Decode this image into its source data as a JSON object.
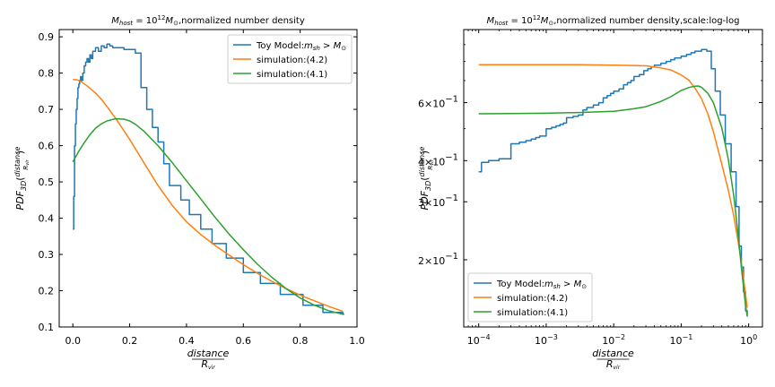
{
  "chart_data": [
    {
      "type": "line",
      "title": "M_host = 10^12 M_⊙ ,normalized number density",
      "title_parts": {
        "m": "M",
        "host": "host",
        "eq": " = 10",
        "exp": "12",
        "msun": "M",
        "sun": "⊙",
        "rest": ",normalized number density"
      },
      "xlabel": "distance / R_vir",
      "xlabel_parts": {
        "num": "distance",
        "den": "R",
        "den_sub": "vir"
      },
      "ylabel": "PDF_3D(distance / R_vir)",
      "ylabel_parts": {
        "pdf": "PDF",
        "sub": "3D",
        "open": "(",
        "num": "distance",
        "den": "R",
        "den_sub": "vir",
        "close": ")"
      },
      "xscale": "linear",
      "yscale": "linear",
      "xlim": [
        -0.048,
        1.0
      ],
      "ylim": [
        0.1,
        0.92
      ],
      "xticks": [
        0.0,
        0.2,
        0.4,
        0.6,
        0.8,
        1.0
      ],
      "xtick_labels": [
        "0.0",
        "0.2",
        "0.4",
        "0.6",
        "0.8",
        "1.0"
      ],
      "yticks": [
        0.1,
        0.2,
        0.3,
        0.4,
        0.5,
        0.6,
        0.7,
        0.8,
        0.9
      ],
      "ytick_labels": [
        "0.1",
        "0.2",
        "0.3",
        "0.4",
        "0.5",
        "0.6",
        "0.7",
        "0.8",
        "0.9"
      ],
      "legend_position": "top-right",
      "grid": false,
      "series": [
        {
          "name": "Toy Model:m_sh > M_⊙",
          "name_parts": {
            "base": "Toy Model:",
            "m": "m",
            "sub": "sh",
            "op": " > ",
            "M": "M",
            "sun": "⊙"
          },
          "color": "#1f77b4",
          "kind": "step",
          "x": [
            0.0,
            0.003,
            0.006,
            0.009,
            0.012,
            0.015,
            0.018,
            0.021,
            0.024,
            0.027,
            0.03,
            0.035,
            0.04,
            0.045,
            0.05,
            0.055,
            0.06,
            0.065,
            0.07,
            0.08,
            0.09,
            0.1,
            0.11,
            0.12,
            0.13,
            0.14,
            0.16,
            0.18,
            0.22,
            0.24,
            0.26,
            0.28,
            0.3,
            0.32,
            0.34,
            0.38,
            0.41,
            0.45,
            0.49,
            0.54,
            0.6,
            0.66,
            0.73,
            0.81,
            0.88,
            0.95
          ],
          "y": [
            0.37,
            0.46,
            0.6,
            0.66,
            0.7,
            0.73,
            0.76,
            0.77,
            0.78,
            0.79,
            0.78,
            0.8,
            0.82,
            0.83,
            0.84,
            0.83,
            0.85,
            0.84,
            0.86,
            0.87,
            0.86,
            0.875,
            0.87,
            0.88,
            0.875,
            0.87,
            0.87,
            0.865,
            0.855,
            0.76,
            0.7,
            0.65,
            0.61,
            0.55,
            0.49,
            0.45,
            0.41,
            0.37,
            0.33,
            0.29,
            0.25,
            0.22,
            0.19,
            0.16,
            0.14,
            0.135
          ]
        },
        {
          "name": "simulation:(4.2)",
          "color": "#ff7f0e",
          "kind": "line",
          "x": [
            0.0,
            0.01,
            0.02,
            0.03,
            0.05,
            0.08,
            0.1,
            0.12,
            0.15,
            0.18,
            0.2,
            0.25,
            0.3,
            0.35,
            0.4,
            0.45,
            0.5,
            0.55,
            0.6,
            0.65,
            0.7,
            0.75,
            0.8,
            0.85,
            0.9,
            0.95
          ],
          "y": [
            0.782,
            0.782,
            0.78,
            0.776,
            0.765,
            0.745,
            0.728,
            0.708,
            0.676,
            0.641,
            0.617,
            0.553,
            0.49,
            0.435,
            0.39,
            0.355,
            0.325,
            0.298,
            0.272,
            0.248,
            0.226,
            0.206,
            0.188,
            0.172,
            0.157,
            0.143
          ]
        },
        {
          "name": "simulation:(4.1)",
          "color": "#2ca02c",
          "kind": "line",
          "x": [
            0.0,
            0.02,
            0.04,
            0.06,
            0.08,
            0.1,
            0.12,
            0.15,
            0.18,
            0.2,
            0.22,
            0.25,
            0.3,
            0.35,
            0.4,
            0.45,
            0.5,
            0.55,
            0.6,
            0.65,
            0.7,
            0.75,
            0.8,
            0.85,
            0.9,
            0.95
          ],
          "y": [
            0.555,
            0.583,
            0.608,
            0.63,
            0.648,
            0.66,
            0.668,
            0.674,
            0.673,
            0.668,
            0.659,
            0.64,
            0.6,
            0.553,
            0.503,
            0.453,
            0.403,
            0.356,
            0.313,
            0.273,
            0.237,
            0.206,
            0.18,
            0.16,
            0.145,
            0.135
          ]
        }
      ]
    },
    {
      "type": "line",
      "title": "M_host = 10^12 M_⊙ ,normalized number density,scale:log-log",
      "title_parts": {
        "m": "M",
        "host": "host",
        "eq": " = 10",
        "exp": "12",
        "msun": "M",
        "sun": "⊙",
        "rest": ",normalized number density,scale:log-log"
      },
      "xlabel": "distance / R_vir",
      "xlabel_parts": {
        "num": "distance",
        "den": "R",
        "den_sub": "vir"
      },
      "ylabel": "PDF_3D(distance / R_vir)",
      "ylabel_parts": {
        "pdf": "PDF",
        "sub": "3D",
        "open": "(",
        "num": "distance",
        "den": "R",
        "den_sub": "vir",
        "close": ")"
      },
      "xscale": "log",
      "yscale": "log",
      "xlim": [
        6e-05,
        1.6
      ],
      "ylim": [
        0.125,
        1.0
      ],
      "xticks": [
        0.0001,
        0.001,
        0.01,
        0.1,
        1.0
      ],
      "xtick_labels": [
        {
          "base": "10",
          "exp": "−4"
        },
        {
          "base": "10",
          "exp": "−3"
        },
        {
          "base": "10",
          "exp": "−2"
        },
        {
          "base": "10",
          "exp": "−1"
        },
        {
          "base": "10",
          "exp": "0"
        }
      ],
      "yticks": [
        0.2,
        0.3,
        0.4,
        0.6
      ],
      "ytick_labels": [
        {
          "m": "2",
          "x": "×",
          "base": "10",
          "exp": "−1"
        },
        {
          "m": "3",
          "x": "×",
          "base": "10",
          "exp": "−1"
        },
        {
          "m": "4",
          "x": "×",
          "base": "10",
          "exp": "−1"
        },
        {
          "m": "6",
          "x": "×",
          "base": "10",
          "exp": "−1"
        }
      ],
      "legend_position": "bottom-left",
      "grid": false,
      "series": [
        {
          "name": "Toy Model:m_sh > M_⊙",
          "name_parts": {
            "base": "Toy Model:",
            "m": "m",
            "sub": "sh",
            "op": " > ",
            "M": "M",
            "sun": "⊙"
          },
          "color": "#1f77b4",
          "kind": "step",
          "x": [
            0.0001,
            0.00011,
            0.00014,
            0.0002,
            0.0003,
            0.0004,
            0.0005,
            0.0006,
            0.0007,
            0.0008,
            0.001,
            0.0012,
            0.0014,
            0.0016,
            0.0018,
            0.002,
            0.0025,
            0.003,
            0.0035,
            0.004,
            0.005,
            0.006,
            0.007,
            0.008,
            0.009,
            0.01,
            0.012,
            0.014,
            0.016,
            0.018,
            0.02,
            0.024,
            0.028,
            0.032,
            0.036,
            0.04,
            0.05,
            0.06,
            0.07,
            0.08,
            0.1,
            0.12,
            0.14,
            0.16,
            0.2,
            0.24,
            0.28,
            0.32,
            0.38,
            0.45,
            0.55,
            0.65,
            0.72,
            0.78,
            0.84,
            0.9,
            0.95
          ],
          "y": [
            0.37,
            0.395,
            0.4,
            0.405,
            0.45,
            0.455,
            0.46,
            0.465,
            0.47,
            0.475,
            0.5,
            0.505,
            0.51,
            0.515,
            0.52,
            0.54,
            0.545,
            0.55,
            0.57,
            0.58,
            0.59,
            0.6,
            0.62,
            0.63,
            0.64,
            0.65,
            0.66,
            0.68,
            0.69,
            0.7,
            0.72,
            0.73,
            0.75,
            0.76,
            0.77,
            0.78,
            0.79,
            0.8,
            0.81,
            0.82,
            0.83,
            0.84,
            0.85,
            0.86,
            0.87,
            0.86,
            0.76,
            0.65,
            0.55,
            0.45,
            0.37,
            0.29,
            0.22,
            0.19,
            0.16,
            0.14,
            0.135
          ]
        },
        {
          "name": "simulation:(4.2)",
          "color": "#ff7f0e",
          "kind": "line",
          "x": [
            0.0001,
            0.0003,
            0.001,
            0.003,
            0.01,
            0.02,
            0.03,
            0.05,
            0.07,
            0.1,
            0.13,
            0.16,
            0.2,
            0.25,
            0.3,
            0.4,
            0.5,
            0.6,
            0.7,
            0.8,
            0.9,
            0.95
          ],
          "y": [
            0.782,
            0.782,
            0.782,
            0.782,
            0.78,
            0.778,
            0.776,
            0.765,
            0.754,
            0.728,
            0.702,
            0.664,
            0.617,
            0.553,
            0.49,
            0.39,
            0.325,
            0.272,
            0.226,
            0.188,
            0.157,
            0.143
          ]
        },
        {
          "name": "simulation:(4.1)",
          "color": "#2ca02c",
          "kind": "line",
          "x": [
            0.0001,
            0.0003,
            0.001,
            0.003,
            0.01,
            0.02,
            0.03,
            0.05,
            0.07,
            0.1,
            0.13,
            0.16,
            0.18,
            0.2,
            0.25,
            0.3,
            0.4,
            0.5,
            0.6,
            0.7,
            0.8,
            0.9,
            0.95
          ],
          "y": [
            0.555,
            0.556,
            0.557,
            0.56,
            0.565,
            0.575,
            0.583,
            0.605,
            0.625,
            0.653,
            0.667,
            0.673,
            0.674,
            0.668,
            0.64,
            0.6,
            0.503,
            0.403,
            0.313,
            0.237,
            0.18,
            0.145,
            0.135
          ]
        }
      ]
    }
  ]
}
